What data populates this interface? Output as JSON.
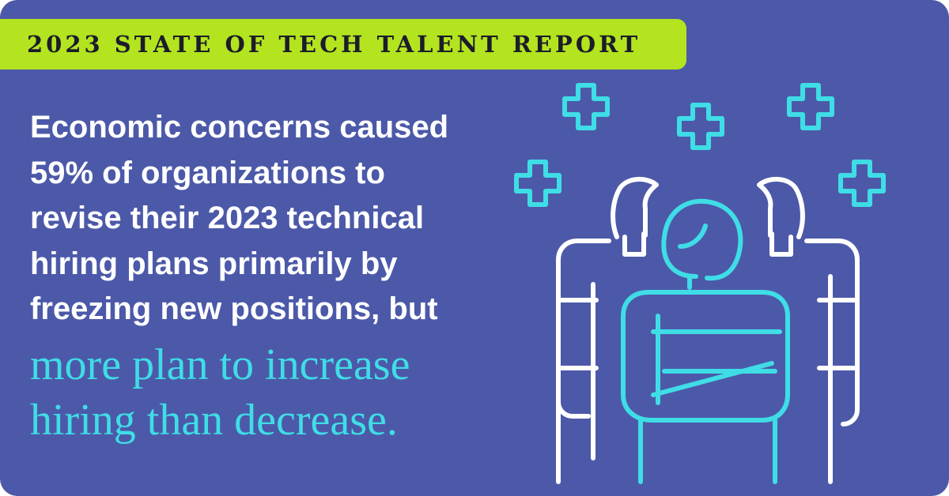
{
  "header": {
    "title": "2023 STATE OF TECH TALENT REPORT"
  },
  "body": {
    "lines": [
      "Economic concerns caused",
      "59% of organizations to",
      "revise their 2023 technical",
      "hiring plans primarily by",
      "freezing new positions, but"
    ],
    "highlight": [
      "more plan to increase",
      "hiring than decrease."
    ]
  }
}
